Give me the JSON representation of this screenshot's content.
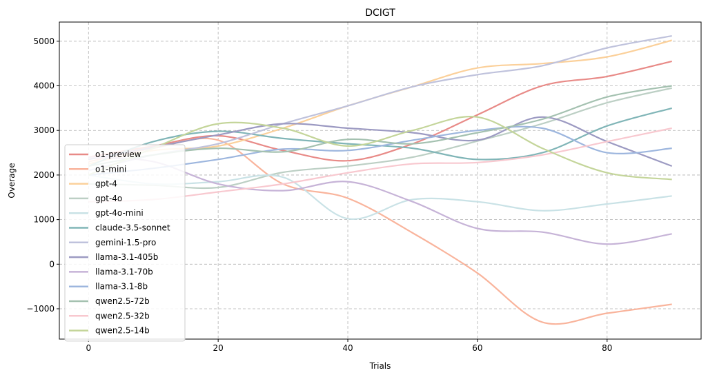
{
  "chart_data": {
    "type": "line",
    "title": "DCIGT",
    "xlabel": "Trials",
    "ylabel": "Overage",
    "xlim": [
      -4.5,
      94.5
    ],
    "ylim": [
      -1680,
      5430
    ],
    "x_ticks": [
      0,
      20,
      40,
      60,
      80
    ],
    "y_ticks": [
      -1000,
      0,
      1000,
      2000,
      3000,
      4000,
      5000
    ],
    "y_tick_labels": [
      "−1000",
      "0",
      "1000",
      "2000",
      "3000",
      "4000",
      "5000"
    ],
    "grid": true,
    "legend_position": "lower-left",
    "x": [
      0,
      10,
      20,
      30,
      40,
      50,
      60,
      70,
      80,
      90
    ],
    "series": [
      {
        "name": "o1-preview",
        "color": "#e88a87",
        "values": [
          2400,
          2650,
          2880,
          2550,
          2320,
          2700,
          3350,
          4000,
          4210,
          4550
        ]
      },
      {
        "name": "o1-mini",
        "color": "#f9b49c",
        "values": [
          2300,
          2600,
          2780,
          1800,
          1480,
          700,
          -200,
          -1300,
          -1100,
          -900
        ]
      },
      {
        "name": "gpt-4",
        "color": "#fbd09a",
        "values": [
          2250,
          2550,
          2650,
          3050,
          3550,
          3980,
          4400,
          4500,
          4650,
          5020
        ]
      },
      {
        "name": "gpt-4o",
        "color": "#bccfc4",
        "values": [
          1800,
          1770,
          1720,
          2060,
          2200,
          2400,
          2760,
          3150,
          3620,
          3950
        ]
      },
      {
        "name": "gpt-4o-mini",
        "color": "#c9e2e6",
        "values": [
          2000,
          1800,
          1850,
          1950,
          1020,
          1450,
          1400,
          1200,
          1350,
          1530
        ]
      },
      {
        "name": "claude-3.5-sonnet",
        "color": "#80b5b7",
        "values": [
          2200,
          2750,
          2980,
          2820,
          2700,
          2600,
          2350,
          2500,
          3100,
          3500
        ]
      },
      {
        "name": "gemini-1.5-pro",
        "color": "#bfc2dc",
        "values": [
          2100,
          2450,
          2700,
          3150,
          3550,
          3980,
          4250,
          4450,
          4850,
          5120
        ]
      },
      {
        "name": "llama-3.1-405b",
        "color": "#9c9ac2",
        "values": [
          2350,
          2620,
          2900,
          3150,
          3050,
          2950,
          2780,
          3300,
          2750,
          2200
        ]
      },
      {
        "name": "llama-3.1-70b",
        "color": "#c6b3d7",
        "values": [
          2400,
          2300,
          1800,
          1650,
          1850,
          1400,
          800,
          720,
          450,
          680
        ]
      },
      {
        "name": "llama-3.1-8b",
        "color": "#9db6de",
        "values": [
          2000,
          2150,
          2350,
          2580,
          2550,
          2780,
          3000,
          3050,
          2500,
          2600
        ]
      },
      {
        "name": "qwen2.5-72b",
        "color": "#a4c1b0",
        "values": [
          2200,
          2450,
          2600,
          2520,
          2800,
          2700,
          2950,
          3250,
          3750,
          4000
        ]
      },
      {
        "name": "qwen2.5-32b",
        "color": "#f8c8cf",
        "values": [
          1400,
          1450,
          1620,
          1800,
          2050,
          2250,
          2280,
          2450,
          2750,
          3050
        ]
      },
      {
        "name": "qwen2.5-14b",
        "color": "#c4d59a",
        "values": [
          2000,
          2600,
          3150,
          3050,
          2650,
          3000,
          3300,
          2600,
          2050,
          1900
        ]
      }
    ]
  }
}
